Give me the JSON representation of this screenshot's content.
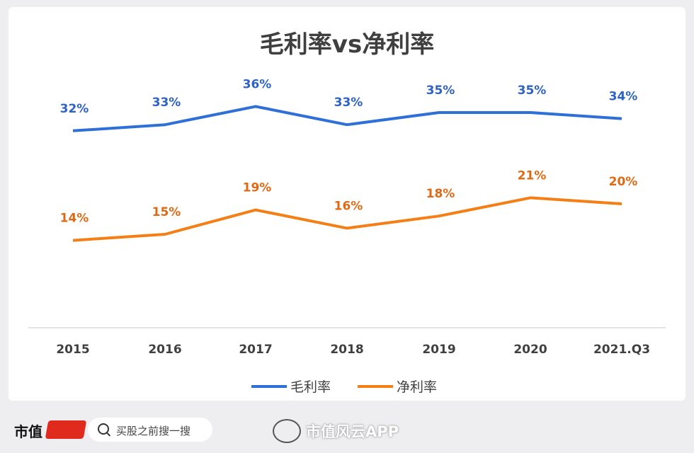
{
  "chart_data": {
    "type": "line",
    "title": "毛利率vs净利率",
    "categories": [
      "2015",
      "2016",
      "2017",
      "2018",
      "2019",
      "2020",
      "2021.Q3"
    ],
    "series": [
      {
        "name": "毛利率",
        "color": "#2e6fd8",
        "values": [
          32,
          33,
          36,
          33,
          35,
          35,
          34
        ],
        "labels": [
          "32%",
          "33%",
          "36%",
          "33%",
          "35%",
          "35%",
          "34%"
        ]
      },
      {
        "name": "净利率",
        "color": "#f47f16",
        "values": [
          14,
          15,
          19,
          16,
          18,
          21,
          20
        ],
        "labels": [
          "14%",
          "15%",
          "19%",
          "16%",
          "18%",
          "21%",
          "20%"
        ]
      }
    ],
    "ylim": [
      0,
      40
    ],
    "grid": false,
    "legend": "bottom"
  },
  "footer": {
    "brand": "市值",
    "search_placeholder": "买股之前搜一搜",
    "app_name": "市值风云APP"
  }
}
